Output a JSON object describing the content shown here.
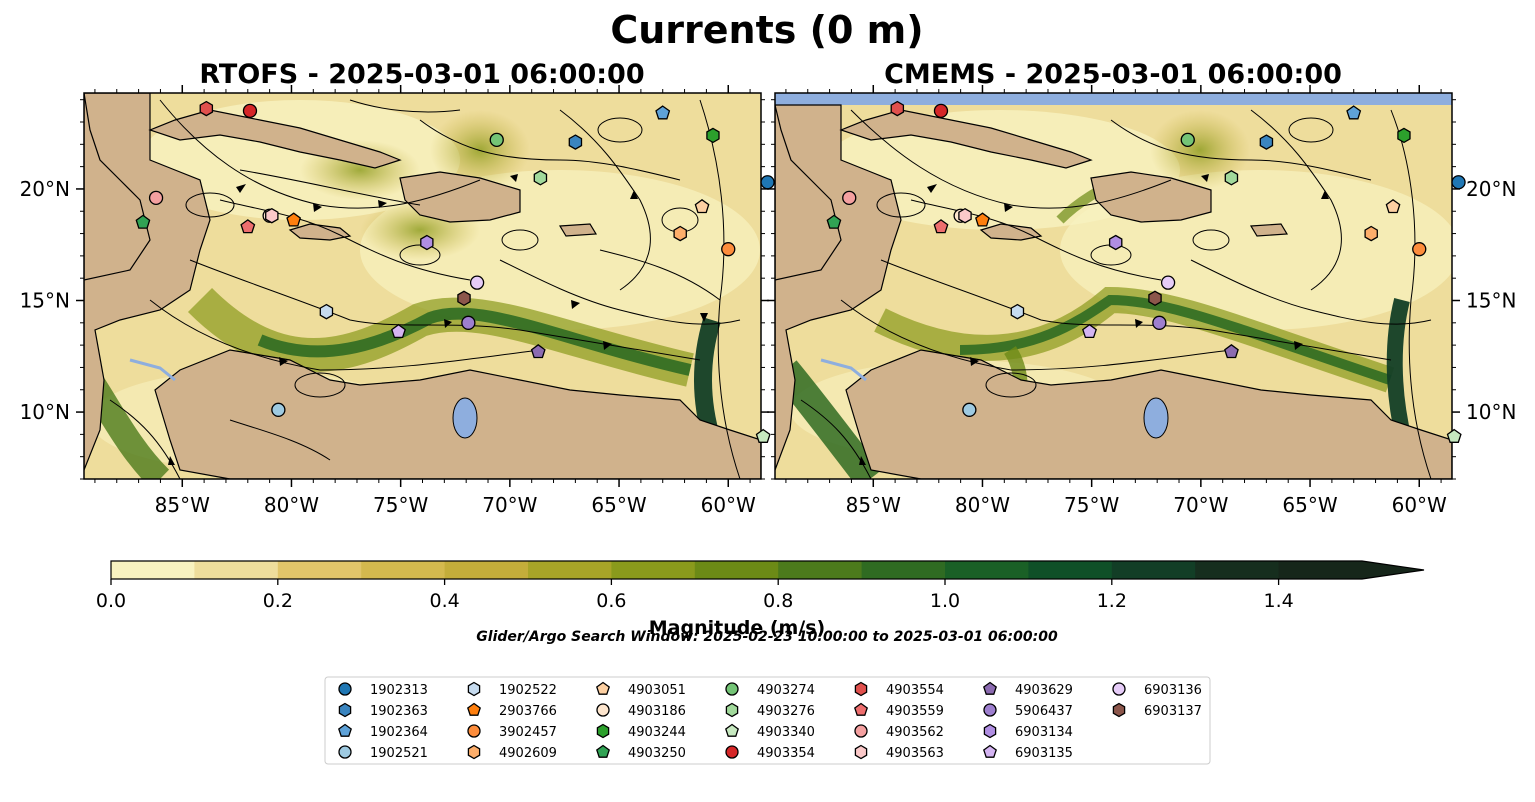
{
  "figure": {
    "title": "Currents (0 m)",
    "search_window": "Glider/Argo Search Window: 2025-02-23 10:00:00 to 2025-03-01 06:00:00"
  },
  "panels": [
    {
      "id": "rtofs",
      "title": "RTOFS - 2025-03-01 06:00:00"
    },
    {
      "id": "cmems",
      "title": "CMEMS - 2025-03-01 06:00:00"
    }
  ],
  "axes": {
    "lon_range": [
      -89.5,
      -58.5
    ],
    "lat_range": [
      7.0,
      24.3
    ],
    "lon_ticks": [
      -85,
      -80,
      -75,
      -70,
      -65,
      -60
    ],
    "lon_labels": [
      "85°W",
      "80°W",
      "75°W",
      "70°W",
      "65°W",
      "60°W"
    ],
    "lat_ticks": [
      10,
      15,
      20
    ],
    "lat_labels": [
      "10°N",
      "15°N",
      "20°N"
    ]
  },
  "colorbar": {
    "title": "Magnitude (m/s)",
    "min": 0.0,
    "max": 1.5,
    "extend": "max",
    "ticks": [
      0.0,
      0.2,
      0.4,
      0.6,
      0.8,
      1.0,
      1.2,
      1.4
    ],
    "tick_labels": [
      "0.0",
      "0.2",
      "0.4",
      "0.6",
      "0.8",
      "1.0",
      "1.2",
      "1.4"
    ],
    "colors": [
      "#f8f2c0",
      "#eedd9c",
      "#e1c56a",
      "#d4b94e",
      "#c4ad3a",
      "#a8a428",
      "#8a9a1c",
      "#6c8a16",
      "#4c7a1c",
      "#2f6b22",
      "#1a6026",
      "#0f5028",
      "#123e26",
      "#162e1e",
      "#16261a"
    ]
  },
  "colors": {
    "land": "#d0b28c",
    "water": "#8eaede",
    "ocean_low": "#f8f2c0",
    "ocean_high": "#1f5e2a",
    "streamline": "#000000"
  },
  "floats": [
    {
      "id": "1902313",
      "marker": "circle",
      "color": "#1f77b4",
      "rtofs": [
        -58.2,
        20.3
      ],
      "cmems": [
        -58.2,
        20.3
      ]
    },
    {
      "id": "1902363",
      "marker": "hexagon",
      "color": "#3a85c0",
      "rtofs": [
        -67.0,
        22.1
      ],
      "cmems": [
        -67.0,
        22.1
      ]
    },
    {
      "id": "1902364",
      "marker": "pentagon",
      "color": "#5ea2d8",
      "rtofs": [
        -63.0,
        23.4
      ],
      "cmems": [
        -63.0,
        23.4
      ]
    },
    {
      "id": "1902521",
      "marker": "circle",
      "color": "#9ecae1",
      "rtofs": [
        -80.6,
        10.1
      ],
      "cmems": [
        -80.6,
        10.1
      ]
    },
    {
      "id": "1902522",
      "marker": "hexagon",
      "color": "#c6dbef",
      "rtofs": [
        -78.4,
        14.5
      ],
      "cmems": [
        -78.4,
        14.5
      ]
    },
    {
      "id": "2903766",
      "marker": "pentagon",
      "color": "#ff7f0e",
      "rtofs": [
        -79.9,
        18.6
      ],
      "cmems": [
        -80.0,
        18.6
      ]
    },
    {
      "id": "3902457",
      "marker": "circle",
      "color": "#fd8d3c",
      "rtofs": [
        -60.0,
        17.3
      ],
      "cmems": [
        -60.0,
        17.3
      ]
    },
    {
      "id": "4902609",
      "marker": "hexagon",
      "color": "#fdae6b",
      "rtofs": [
        -62.2,
        18.0
      ],
      "cmems": [
        -62.2,
        18.0
      ]
    },
    {
      "id": "4903051",
      "marker": "pentagon",
      "color": "#fdd0a2",
      "rtofs": [
        -61.2,
        19.2
      ],
      "cmems": [
        -61.2,
        19.2
      ]
    },
    {
      "id": "4903186",
      "marker": "circle",
      "color": "#fee6ce",
      "rtofs": [
        -81.0,
        18.8
      ],
      "cmems": [
        -81.0,
        18.8
      ]
    },
    {
      "id": "4903244",
      "marker": "hexagon",
      "color": "#2ca02c",
      "rtofs": [
        -60.7,
        22.4
      ],
      "cmems": [
        -60.7,
        22.4
      ]
    },
    {
      "id": "4903250",
      "marker": "pentagon",
      "color": "#31a354",
      "rtofs": [
        -86.8,
        18.5
      ],
      "cmems": [
        -86.8,
        18.5
      ]
    },
    {
      "id": "4903274",
      "marker": "circle",
      "color": "#74c476",
      "rtofs": [
        -70.6,
        22.2
      ],
      "cmems": [
        -70.6,
        22.2
      ]
    },
    {
      "id": "4903276",
      "marker": "hexagon",
      "color": "#a1d99b",
      "rtofs": [
        -68.6,
        20.5
      ],
      "cmems": [
        -68.6,
        20.5
      ]
    },
    {
      "id": "4903340",
      "marker": "pentagon",
      "color": "#c7e9c0",
      "rtofs": [
        -58.4,
        8.9
      ],
      "cmems": [
        -58.4,
        8.9
      ]
    },
    {
      "id": "4903354",
      "marker": "circle",
      "color": "#d62728",
      "rtofs": [
        -81.9,
        23.5
      ],
      "cmems": [
        -81.9,
        23.5
      ]
    },
    {
      "id": "4903554",
      "marker": "hexagon",
      "color": "#e0504d",
      "rtofs": [
        -83.9,
        23.6
      ],
      "cmems": [
        -83.9,
        23.6
      ]
    },
    {
      "id": "4903559",
      "marker": "pentagon",
      "color": "#ee6e6e",
      "rtofs": [
        -82.0,
        18.3
      ],
      "cmems": [
        -81.9,
        18.3
      ]
    },
    {
      "id": "4903562",
      "marker": "circle",
      "color": "#f4a0a0",
      "rtofs": [
        -86.2,
        19.6
      ],
      "cmems": [
        -86.1,
        19.6
      ]
    },
    {
      "id": "4903563",
      "marker": "hexagon",
      "color": "#fbc9c9",
      "rtofs": [
        -80.9,
        18.8
      ],
      "cmems": [
        -80.8,
        18.8
      ]
    },
    {
      "id": "4903629",
      "marker": "pentagon",
      "color": "#8c6bb1",
      "rtofs": [
        -68.7,
        12.7
      ],
      "cmems": [
        -68.6,
        12.7
      ]
    },
    {
      "id": "5906437",
      "marker": "circle",
      "color": "#9e7fcf",
      "rtofs": [
        -71.9,
        14.0
      ],
      "cmems": [
        -71.9,
        14.0
      ]
    },
    {
      "id": "6903134",
      "marker": "hexagon",
      "color": "#b08ee2",
      "rtofs": [
        -73.8,
        17.6
      ],
      "cmems": [
        -73.9,
        17.6
      ]
    },
    {
      "id": "6903135",
      "marker": "pentagon",
      "color": "#d4b4f2",
      "rtofs": [
        -75.1,
        13.6
      ],
      "cmems": [
        -75.1,
        13.6
      ]
    },
    {
      "id": "6903136",
      "marker": "circle",
      "color": "#e6ccf8",
      "rtofs": [
        -71.5,
        15.8
      ],
      "cmems": [
        -71.5,
        15.8
      ]
    },
    {
      "id": "6903137",
      "marker": "hexagon",
      "color": "#8c564b",
      "rtofs": [
        -72.1,
        15.1
      ],
      "cmems": [
        -72.1,
        15.1
      ]
    }
  ]
}
